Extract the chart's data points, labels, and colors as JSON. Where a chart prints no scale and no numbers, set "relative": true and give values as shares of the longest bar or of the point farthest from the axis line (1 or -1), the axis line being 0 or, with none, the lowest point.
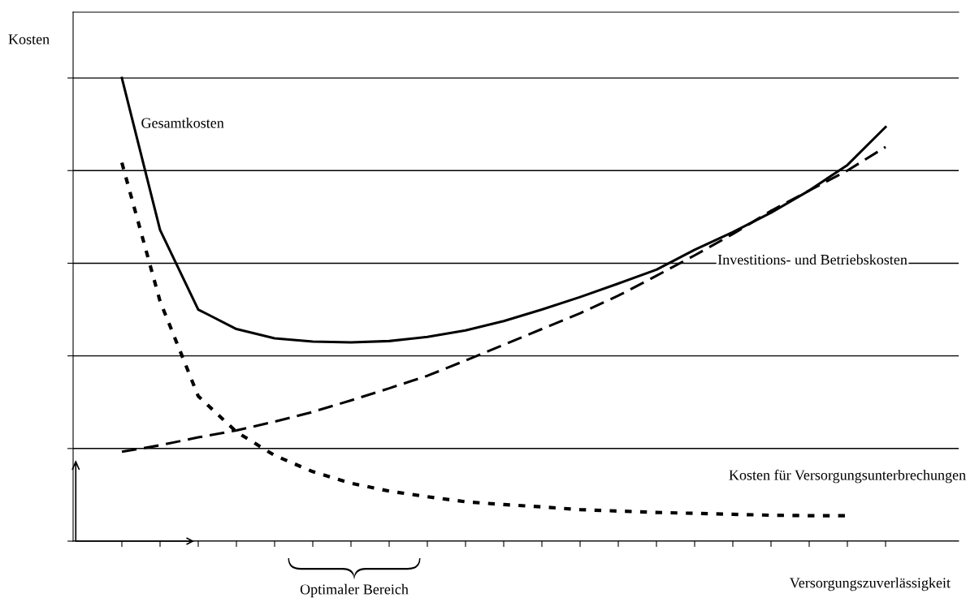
{
  "chart_data": {
    "type": "line",
    "relative": true,
    "ylabel": "Kosten",
    "xlabel": "Versorgungszuverlässigkeit",
    "annotations": [
      "Optimaler Bereich"
    ],
    "categories": [
      null,
      null,
      null,
      null,
      null,
      null,
      null,
      null,
      null,
      null,
      null,
      null,
      null,
      null,
      null,
      null,
      null,
      null,
      null,
      null,
      null
    ],
    "grid": "y",
    "series": [
      {
        "name": "Gesamtkosten",
        "color": "#000000",
        "line_style": "solid",
        "values": [
          1.0,
          0.672,
          0.5,
          0.458,
          0.438,
          0.431,
          0.429,
          0.432,
          0.441,
          0.455,
          0.475,
          0.5,
          0.527,
          0.556,
          0.586,
          0.629,
          0.667,
          0.709,
          0.757,
          0.812,
          0.894
        ]
      },
      {
        "name": "Investitions- und Betriebskosten",
        "color": "#000000",
        "line_style": "dashed",
        "values": [
          0.193,
          0.207,
          0.224,
          0.239,
          0.258,
          0.279,
          0.304,
          0.33,
          0.357,
          0.39,
          0.424,
          0.458,
          0.492,
          0.53,
          0.573,
          0.617,
          0.663,
          0.713,
          0.757,
          0.8,
          0.851
        ]
      },
      {
        "name": "Kosten für Versorgungsunterbrechungen",
        "color": "#000000",
        "line_style": "dotted",
        "values": [
          0.817,
          0.518,
          0.313,
          0.236,
          0.185,
          0.15,
          0.125,
          0.108,
          0.096,
          0.085,
          0.079,
          0.074,
          0.068,
          0.065,
          0.062,
          0.06,
          0.058,
          0.056,
          0.055,
          0.055,
          null
        ]
      }
    ]
  }
}
